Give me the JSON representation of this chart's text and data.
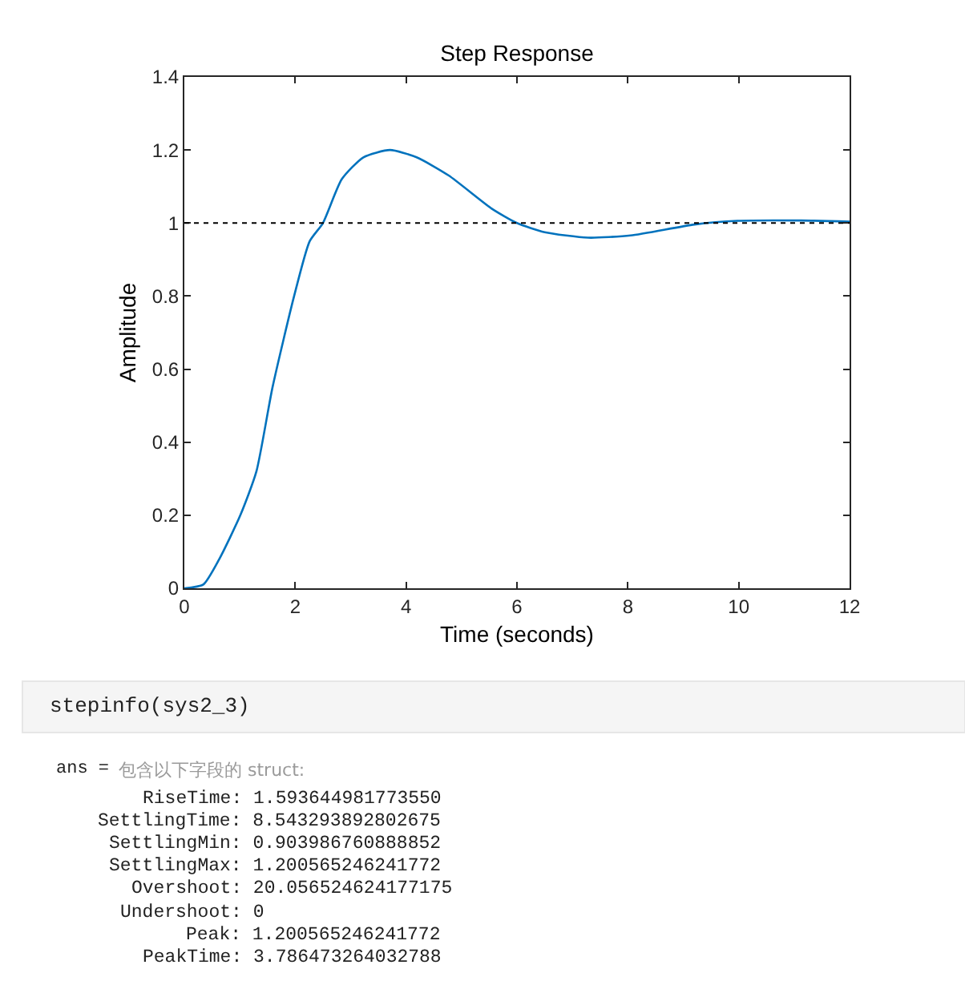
{
  "chart_data": {
    "type": "line",
    "title": "Step Response",
    "xlabel": "Time (seconds)",
    "ylabel": "Amplitude",
    "x": [
      0,
      0.34,
      0.63,
      1.01,
      1.3,
      1.59,
      1.98,
      2.26,
      2.5,
      2.84,
      3.23,
      3.71,
      4.19,
      4.77,
      5.54,
      6.0,
      6.5,
      7.28,
      8.05,
      9.2,
      9.98,
      11.13,
      12
    ],
    "series": [
      {
        "color": "#0072bd",
        "values": [
          0,
          0.01,
          0.08,
          0.2,
          0.32,
          0.55,
          0.8,
          0.95,
          1.0,
          1.12,
          1.18,
          1.2,
          1.18,
          1.13,
          1.04,
          1.0,
          0.975,
          0.96,
          0.966,
          0.996,
          1.006,
          1.007,
          1.004
        ]
      }
    ],
    "xlim": [
      0,
      12
    ],
    "xticks": [
      0,
      2,
      4,
      6,
      8,
      10,
      12
    ],
    "ylim": [
      0,
      1.4
    ],
    "yticks": [
      0,
      0.2,
      0.4,
      0.6,
      0.8,
      1,
      1.2,
      1.4
    ],
    "ref_lines": [
      {
        "axis": "y",
        "value": 1,
        "color": "#000000",
        "line_style": "dotted"
      }
    ],
    "marker": "none",
    "line_style": "solid",
    "annotations": [
      "stepinfo(sys2_3)",
      "ans =",
      "包含以下字段的 struct:",
      "RiseTime: 1.593644981773550",
      "SettlingTime: 8.543293892802675",
      "SettlingMin: 0.903986760888852",
      "SettlingMax: 1.200565246241772",
      "Overshoot: 20.056524624177175",
      "Undershoot: 0",
      "Peak: 1.200565246241772",
      "PeakTime: 3.786473264032788"
    ]
  }
}
